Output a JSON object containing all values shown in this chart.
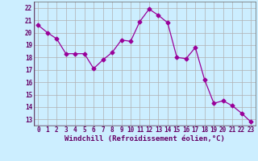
{
  "x": [
    0,
    1,
    2,
    3,
    4,
    5,
    6,
    7,
    8,
    9,
    10,
    11,
    12,
    13,
    14,
    15,
    16,
    17,
    18,
    19,
    20,
    21,
    22,
    23
  ],
  "y": [
    20.6,
    20.0,
    19.5,
    18.3,
    18.3,
    18.3,
    17.1,
    17.8,
    18.4,
    19.4,
    19.3,
    20.9,
    21.9,
    21.4,
    20.8,
    18.0,
    17.9,
    18.8,
    16.2,
    14.3,
    14.5,
    14.1,
    13.5,
    12.8
  ],
  "line_color": "#990099",
  "marker": "D",
  "marker_size": 2.5,
  "bg_color": "#cceeff",
  "grid_color": "#b0b0b0",
  "xlabel": "Windchill (Refroidissement éolien,°C)",
  "xlim": [
    -0.5,
    23.5
  ],
  "ylim": [
    12.5,
    22.5
  ],
  "yticks": [
    13,
    14,
    15,
    16,
    17,
    18,
    19,
    20,
    21,
    22
  ],
  "xticks": [
    0,
    1,
    2,
    3,
    4,
    5,
    6,
    7,
    8,
    9,
    10,
    11,
    12,
    13,
    14,
    15,
    16,
    17,
    18,
    19,
    20,
    21,
    22,
    23
  ],
  "tick_fontsize": 5.5,
  "xlabel_fontsize": 6.5,
  "spine_color": "#666666",
  "text_color": "#660066"
}
